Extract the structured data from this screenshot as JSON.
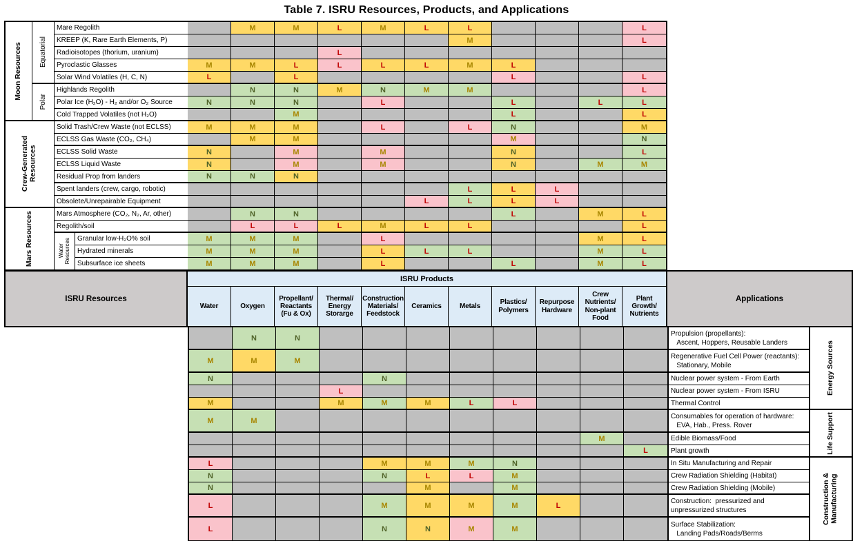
{
  "title": "Table 7. ISRU Resources, Products, and Applications",
  "headers": {
    "resources": "ISRU Resources",
    "products": "ISRU Products",
    "applications": "Applications"
  },
  "colors": {
    "cell_gray": "#BFBFBF",
    "cell_yellow": "#FFD966",
    "cell_green": "#C6E0B4",
    "cell_pink": "#FAC3CB",
    "letter_M": "#A88600",
    "letter_L": "#C00000",
    "letter_N": "#4F6228",
    "header_blue": "#DDEBF7",
    "header_gray": "#CDCACA",
    "border": "#000000"
  },
  "product_columns": [
    "Water",
    "Oxygen",
    "Propellant/\nReactants\n(Fu & Ox)",
    "Thermal/\nEnergy\nStorarge",
    "Construction\nMaterials/\nFeedstock",
    "Ceramics",
    "Metals",
    "Plastics/\nPolymers",
    "Repurpose\nHardware",
    "Crew\nNutrients/\nNon-plant\nFood",
    "Plant\nGrowth/\nNutrients"
  ],
  "resources": {
    "groups": [
      {
        "name": "Moon Resources",
        "subs": [
          {
            "name": "Equatorial",
            "rows": 5
          },
          {
            "name": "Polar",
            "rows": 3
          }
        ]
      },
      {
        "name": "Crew-Generated\nResources",
        "rows": 7
      },
      {
        "name": "Mars Resources",
        "rows": 2,
        "subs": [
          {
            "name": "Water\nResources",
            "rows": 3
          }
        ]
      }
    ],
    "rows": [
      {
        "label": "Mare Regolith",
        "cells": [
          ".g",
          "My",
          "My",
          "Ly",
          "My",
          "Ly",
          "Ly",
          ".g",
          ".g",
          ".g",
          "Lp"
        ]
      },
      {
        "label": "KREEP (K, Rare Earth Elements, P)",
        "cells": [
          ".g",
          ".g",
          ".g",
          ".g",
          ".g",
          ".g",
          "My",
          ".g",
          ".g",
          ".g",
          "Lp"
        ]
      },
      {
        "label": "Radioisotopes (thorium, uranium)",
        "cells": [
          ".g",
          ".g",
          ".g",
          "Lp",
          ".g",
          ".g",
          ".g",
          ".g",
          ".g",
          ".g",
          ".g"
        ]
      },
      {
        "label": "Pyroclastic Glasses",
        "cells": [
          "My",
          "My",
          "Ly",
          "Lp",
          "Ly",
          "Ly",
          "My",
          "Ly",
          ".g",
          ".g",
          ".g"
        ]
      },
      {
        "label": "Solar Wind Volatiles (H, C, N)",
        "cells": [
          "Ly",
          ".g",
          "Ly",
          ".g",
          ".g",
          ".g",
          ".g",
          "Lp",
          ".g",
          ".g",
          "Lp"
        ]
      },
      {
        "label": "Highlands Regolith",
        "cells": [
          ".g",
          "Nn",
          "Nn",
          "My",
          "Nn",
          "Mn",
          "Mn",
          ".g",
          ".g",
          ".g",
          "Lp"
        ]
      },
      {
        "label": "Polar Ice (H₂O) - H₂ and/or O₂ Source",
        "cells": [
          "Nn",
          "Nn",
          "Nn",
          ".g",
          "Lp",
          ".g",
          ".g",
          "Ln",
          ".g",
          "Ln",
          "Ln"
        ]
      },
      {
        "label": "Cold Trapped Volatiles (not H₂O)",
        "cells": [
          ".g",
          ".g",
          "Mn",
          ".g",
          ".g",
          ".g",
          ".g",
          "Ln",
          ".g",
          ".g",
          "Ly"
        ]
      },
      {
        "label": "Solid Trash/Crew Waste (not ECLSS)",
        "cells": [
          "My",
          "My",
          "My",
          ".g",
          "Lp",
          ".g",
          "Lp",
          "Nn",
          ".g",
          ".g",
          "My"
        ]
      },
      {
        "label": "ECLSS Gas Waste (CO₂, CH₄)",
        "cells": [
          ".g",
          "My",
          "My",
          ".g",
          ".g",
          ".g",
          ".g",
          "Mp",
          ".g",
          ".g",
          "Nn"
        ]
      },
      {
        "label": "ECLSS Solid Waste",
        "cells": [
          "Ny",
          ".g",
          "Mp",
          ".g",
          "Mp",
          ".g",
          ".g",
          "Ny",
          ".g",
          ".g",
          "Ln"
        ]
      },
      {
        "label": "ECLSS Liquid Waste",
        "cells": [
          "Ny",
          ".g",
          "Mp",
          ".g",
          "Mp",
          ".g",
          ".g",
          "Ny",
          ".g",
          "Mn",
          "Mn"
        ]
      },
      {
        "label": "Residual Prop from landers",
        "cells": [
          "Nn",
          "Nn",
          "Ny",
          ".g",
          ".g",
          ".g",
          ".g",
          ".g",
          ".g",
          ".g",
          ".g"
        ]
      },
      {
        "label": "Spent landers (crew, cargo, robotic)",
        "cells": [
          ".g",
          ".g",
          ".g",
          ".g",
          ".g",
          ".g",
          "Ln",
          "Ly",
          "Lp",
          ".g",
          ".g"
        ]
      },
      {
        "label": "Obsolete/Unrepairable Equipment",
        "cells": [
          ".g",
          ".g",
          ".g",
          ".g",
          ".g",
          "Lp",
          "Ln",
          "Ly",
          "Lp",
          ".g",
          ".g"
        ]
      },
      {
        "label": "Mars Atmosphere (CO₂, N₂, Ar, other)",
        "cells": [
          ".g",
          "Nn",
          "Nn",
          ".g",
          ".g",
          ".g",
          ".g",
          "Ln",
          ".g",
          "My",
          "Ly"
        ]
      },
      {
        "label": "Regolith/soil",
        "cells": [
          ".g",
          "Lp",
          "Lp",
          "Ly",
          "My",
          "Ly",
          "Ly",
          ".g",
          ".g",
          ".g",
          "Ly"
        ]
      },
      {
        "label": "Granular low-H₂O% soil",
        "cells": [
          "Mn",
          "Mn",
          "Mn",
          ".g",
          "Lp",
          ".g",
          ".g",
          ".g",
          ".g",
          "My",
          "Ly"
        ]
      },
      {
        "label": "Hydrated minerals",
        "cells": [
          "Mn",
          "Mn",
          "Mn",
          ".g",
          "Ly",
          "Ln",
          "Ln",
          ".g",
          ".g",
          "Mn",
          "Ln"
        ]
      },
      {
        "label": "Subsurface ice sheets",
        "cells": [
          "Mn",
          "Mn",
          "Mn",
          ".g",
          "Ly",
          ".g",
          ".g",
          "Ln",
          ".g",
          "Mn",
          "Ln"
        ]
      }
    ]
  },
  "applications": {
    "groups": [
      {
        "name": "Energy Sources",
        "rows": 5
      },
      {
        "name": "Life Support",
        "rows": 3
      },
      {
        "name": "Construction &\nManufacturing",
        "rows": 5
      }
    ],
    "rows": [
      {
        "label": "Propulsion (propellants):\n   Ascent, Hoppers, Reusable Landers",
        "cells": [
          ".g",
          "Nn",
          "Nn",
          ".g",
          ".g",
          ".g",
          ".g",
          ".g",
          ".g",
          ".g",
          ".g"
        ]
      },
      {
        "label": "Regenerative Fuel Cell Power (reactants):\n   Stationary, Mobile",
        "cells": [
          "Mn",
          "My",
          "Mn",
          ".g",
          ".g",
          ".g",
          ".g",
          ".g",
          ".g",
          ".g",
          ".g"
        ]
      },
      {
        "label": "Nuclear power system - From Earth",
        "cells": [
          "Nn",
          ".g",
          ".g",
          ".g",
          "Nn",
          ".g",
          ".g",
          ".g",
          ".g",
          ".g",
          ".g"
        ]
      },
      {
        "label": "Nuclear power system - From ISRU",
        "cells": [
          ".g",
          ".g",
          ".g",
          "Lp",
          ".g",
          ".g",
          ".g",
          ".g",
          ".g",
          ".g",
          ".g"
        ]
      },
      {
        "label": "Thermal Control",
        "cells": [
          "My",
          ".g",
          ".g",
          "My",
          "Mn",
          "My",
          "Ln",
          "Lp",
          ".g",
          ".g",
          ".g"
        ]
      },
      {
        "label": "Consumables for operation of hardware:\n   EVA, Hab., Press. Rover",
        "cells": [
          "Mn",
          "Mn",
          ".g",
          ".g",
          ".g",
          ".g",
          ".g",
          ".g",
          ".g",
          ".g",
          ".g"
        ]
      },
      {
        "label": "Edible Biomass/Food",
        "cells": [
          ".g",
          ".g",
          ".g",
          ".g",
          ".g",
          ".g",
          ".g",
          ".g",
          ".g",
          "Mn",
          ".g"
        ]
      },
      {
        "label": "Plant growth",
        "cells": [
          ".g",
          ".g",
          ".g",
          ".g",
          ".g",
          ".g",
          ".g",
          ".g",
          ".g",
          ".g",
          "Ln"
        ]
      },
      {
        "label": "In Situ Manufacturing and Repair",
        "cells": [
          "Lp",
          ".g",
          ".g",
          ".g",
          "My",
          "My",
          "Mn",
          "Nn",
          ".g",
          ".g",
          ".g"
        ]
      },
      {
        "label": "Crew Radiation Shielding (Habitat)",
        "cells": [
          "Nn",
          ".g",
          ".g",
          ".g",
          "Nn",
          "Ly",
          "Lp",
          "Mn",
          ".g",
          ".g",
          ".g"
        ]
      },
      {
        "label": "Crew Radiation Shielding (Mobile)",
        "cells": [
          "Nn",
          ".g",
          ".g",
          ".g",
          ".g",
          "My",
          ".g",
          "Mn",
          ".g",
          ".g",
          ".g"
        ]
      },
      {
        "label": "Construction:  pressurized and\nunpressurized structures",
        "cells": [
          "Lp",
          ".g",
          ".g",
          ".g",
          "Mn",
          "My",
          "My",
          "Mn",
          "Ly",
          ".g",
          ".g"
        ]
      },
      {
        "label": "Surface Stabilization:\n   Landing Pads/Roads/Berms",
        "cells": [
          "Lp",
          ".g",
          ".g",
          ".g",
          "Nn",
          "Ny",
          "Mp",
          "Mn",
          ".g",
          ".g",
          ".g"
        ]
      }
    ]
  }
}
